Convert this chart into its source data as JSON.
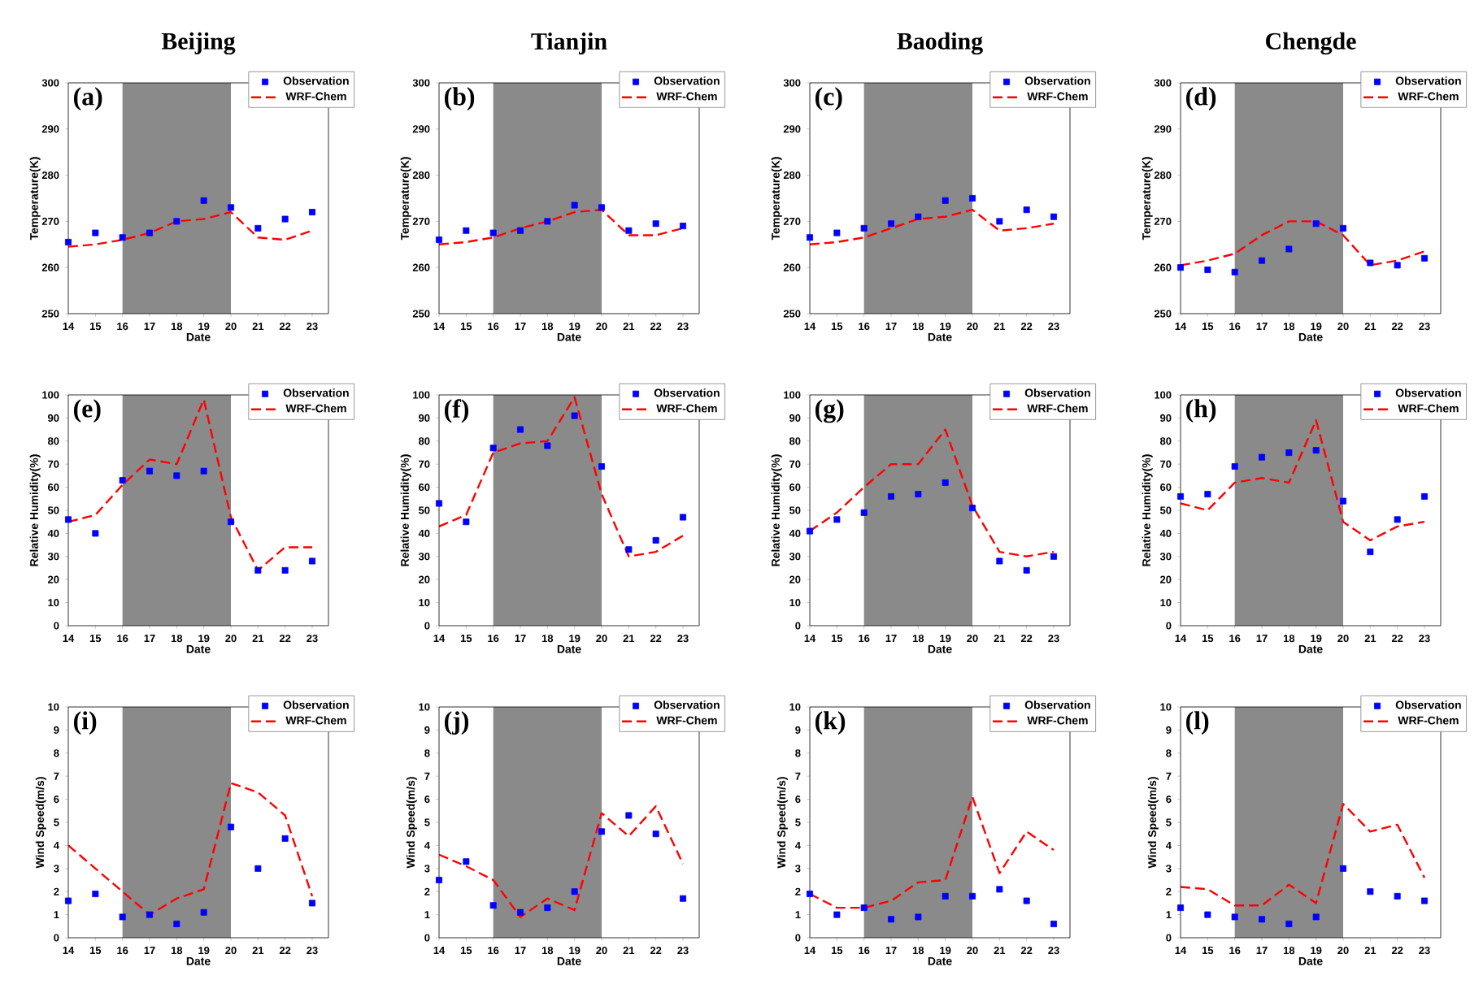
{
  "chart_data": [
    {
      "type": "line",
      "title": "Beijing",
      "annotations": [
        "(a)"
      ],
      "xlabel": "Date",
      "ylabel": "Temperature(K)",
      "x": [
        14,
        15,
        16,
        17,
        18,
        19,
        20,
        21,
        22,
        23
      ],
      "xlim": [
        14,
        23.6
      ],
      "xticks": [
        14,
        15,
        16,
        17,
        18,
        19,
        20,
        21,
        22,
        23
      ],
      "ylim": [
        250,
        300
      ],
      "yticks": [
        250,
        260,
        270,
        280,
        290,
        300
      ],
      "legend": "top right",
      "bands": [
        {
          "axis": "x",
          "from": 16,
          "to": 20,
          "color": "#8a8a8a"
        }
      ],
      "series": [
        {
          "name": "Observation",
          "type": "scatter",
          "color": "#0000ff",
          "marker": "square",
          "values": [
            265.5,
            267.5,
            266.5,
            267.5,
            270,
            274.5,
            273,
            268.5,
            270.5,
            272
          ]
        },
        {
          "name": "WRF-Chem",
          "type": "line",
          "color": "#ff0000",
          "marker": "none",
          "line_style": "dashed",
          "values": [
            264.5,
            265,
            266,
            267.5,
            270,
            270.5,
            272,
            266.5,
            266,
            268
          ]
        }
      ]
    },
    {
      "type": "line",
      "title": "Tianjin",
      "annotations": [
        "(b)"
      ],
      "xlabel": "Date",
      "ylabel": "Temperature(K)",
      "x": [
        14,
        15,
        16,
        17,
        18,
        19,
        20,
        21,
        22,
        23
      ],
      "xlim": [
        14,
        23.6
      ],
      "xticks": [
        14,
        15,
        16,
        17,
        18,
        19,
        20,
        21,
        22,
        23
      ],
      "ylim": [
        250,
        300
      ],
      "yticks": [
        250,
        260,
        270,
        280,
        290,
        300
      ],
      "legend": "top right",
      "bands": [
        {
          "axis": "x",
          "from": 16,
          "to": 20,
          "color": "#8a8a8a"
        }
      ],
      "series": [
        {
          "name": "Observation",
          "type": "scatter",
          "color": "#0000ff",
          "marker": "square",
          "values": [
            266,
            268,
            267.5,
            268,
            270,
            273.5,
            273,
            268,
            269.5,
            269
          ]
        },
        {
          "name": "WRF-Chem",
          "type": "line",
          "color": "#ff0000",
          "marker": "none",
          "line_style": "dashed",
          "values": [
            265,
            265.5,
            266.5,
            268.5,
            270,
            272,
            272.5,
            267,
            267,
            268.5
          ]
        }
      ]
    },
    {
      "type": "line",
      "title": "Baoding",
      "annotations": [
        "(c)"
      ],
      "xlabel": "Date",
      "ylabel": "Temperature(K)",
      "x": [
        14,
        15,
        16,
        17,
        18,
        19,
        20,
        21,
        22,
        23
      ],
      "xlim": [
        14,
        23.6
      ],
      "xticks": [
        14,
        15,
        16,
        17,
        18,
        19,
        20,
        21,
        22,
        23
      ],
      "ylim": [
        250,
        300
      ],
      "yticks": [
        250,
        260,
        270,
        280,
        290,
        300
      ],
      "legend": "top right",
      "bands": [
        {
          "axis": "x",
          "from": 16,
          "to": 20,
          "color": "#8a8a8a"
        }
      ],
      "series": [
        {
          "name": "Observation",
          "type": "scatter",
          "color": "#0000ff",
          "marker": "square",
          "values": [
            266.5,
            267.5,
            268.5,
            269.5,
            271,
            274.5,
            275,
            270,
            272.5,
            271
          ]
        },
        {
          "name": "WRF-Chem",
          "type": "line",
          "color": "#ff0000",
          "marker": "none",
          "line_style": "dashed",
          "values": [
            265,
            265.5,
            266.5,
            268.5,
            270.5,
            271,
            272.5,
            268,
            268.5,
            269.5
          ]
        }
      ]
    },
    {
      "type": "line",
      "title": "Chengde",
      "annotations": [
        "(d)"
      ],
      "xlabel": "Date",
      "ylabel": "Temperature(K)",
      "x": [
        14,
        15,
        16,
        17,
        18,
        19,
        20,
        21,
        22,
        23
      ],
      "xlim": [
        14,
        23.6
      ],
      "xticks": [
        14,
        15,
        16,
        17,
        18,
        19,
        20,
        21,
        22,
        23
      ],
      "ylim": [
        250,
        300
      ],
      "yticks": [
        250,
        260,
        270,
        280,
        290,
        300
      ],
      "legend": "top right",
      "bands": [
        {
          "axis": "x",
          "from": 16,
          "to": 20,
          "color": "#8a8a8a"
        }
      ],
      "series": [
        {
          "name": "Observation",
          "type": "scatter",
          "color": "#0000ff",
          "marker": "square",
          "values": [
            260,
            259.5,
            259,
            261.5,
            264,
            269.5,
            268.5,
            261,
            260.5,
            262
          ]
        },
        {
          "name": "WRF-Chem",
          "type": "line",
          "color": "#ff0000",
          "marker": "none",
          "line_style": "dashed",
          "values": [
            260.5,
            261.5,
            263,
            267,
            270,
            270,
            267,
            260.5,
            261.5,
            263.5
          ]
        }
      ]
    },
    {
      "type": "line",
      "annotations": [
        "(e)"
      ],
      "xlabel": "Date",
      "ylabel": "Relative Humidity(%)",
      "x": [
        14,
        15,
        16,
        17,
        18,
        19,
        20,
        21,
        22,
        23
      ],
      "xlim": [
        14,
        23.6
      ],
      "xticks": [
        14,
        15,
        16,
        17,
        18,
        19,
        20,
        21,
        22,
        23
      ],
      "ylim": [
        0,
        100
      ],
      "yticks": [
        0,
        10,
        20,
        30,
        40,
        50,
        60,
        70,
        80,
        90,
        100
      ],
      "legend": "top right",
      "bands": [
        {
          "axis": "x",
          "from": 16,
          "to": 20,
          "color": "#8a8a8a"
        }
      ],
      "series": [
        {
          "name": "Observation",
          "type": "scatter",
          "color": "#0000ff",
          "marker": "square",
          "values": [
            46,
            40,
            63,
            67,
            65,
            67,
            45,
            24,
            24,
            28
          ]
        },
        {
          "name": "WRF-Chem",
          "type": "line",
          "color": "#ff0000",
          "marker": "none",
          "line_style": "dashed",
          "values": [
            45,
            48,
            61,
            72,
            70,
            98,
            47,
            24,
            34,
            34
          ]
        }
      ]
    },
    {
      "type": "line",
      "annotations": [
        "(f)"
      ],
      "xlabel": "Date",
      "ylabel": "Relative Humidity(%)",
      "x": [
        14,
        15,
        16,
        17,
        18,
        19,
        20,
        21,
        22,
        23
      ],
      "xlim": [
        14,
        23.6
      ],
      "xticks": [
        14,
        15,
        16,
        17,
        18,
        19,
        20,
        21,
        22,
        23
      ],
      "ylim": [
        0,
        100
      ],
      "yticks": [
        0,
        10,
        20,
        30,
        40,
        50,
        60,
        70,
        80,
        90,
        100
      ],
      "legend": "top right",
      "bands": [
        {
          "axis": "x",
          "from": 16,
          "to": 20,
          "color": "#8a8a8a"
        }
      ],
      "series": [
        {
          "name": "Observation",
          "type": "scatter",
          "color": "#0000ff",
          "marker": "square",
          "values": [
            53,
            45,
            77,
            85,
            78,
            91,
            69,
            33,
            37,
            47
          ]
        },
        {
          "name": "WRF-Chem",
          "type": "line",
          "color": "#ff0000",
          "marker": "none",
          "line_style": "dashed",
          "values": [
            43,
            48,
            75,
            79,
            80,
            99,
            57,
            30,
            32,
            39
          ]
        }
      ]
    },
    {
      "type": "line",
      "annotations": [
        "(g)"
      ],
      "xlabel": "Date",
      "ylabel": "Relative Humidity(%)",
      "x": [
        14,
        15,
        16,
        17,
        18,
        19,
        20,
        21,
        22,
        23
      ],
      "xlim": [
        14,
        23.6
      ],
      "xticks": [
        14,
        15,
        16,
        17,
        18,
        19,
        20,
        21,
        22,
        23
      ],
      "ylim": [
        0,
        100
      ],
      "yticks": [
        0,
        10,
        20,
        30,
        40,
        50,
        60,
        70,
        80,
        90,
        100
      ],
      "legend": "top right",
      "bands": [
        {
          "axis": "x",
          "from": 16,
          "to": 20,
          "color": "#8a8a8a"
        }
      ],
      "series": [
        {
          "name": "Observation",
          "type": "scatter",
          "color": "#0000ff",
          "marker": "square",
          "values": [
            41,
            46,
            49,
            56,
            57,
            62,
            51,
            28,
            24,
            30
          ]
        },
        {
          "name": "WRF-Chem",
          "type": "line",
          "color": "#ff0000",
          "marker": "none",
          "line_style": "dashed",
          "values": [
            41,
            49,
            60,
            70,
            70,
            85,
            52,
            32,
            30,
            32
          ]
        }
      ]
    },
    {
      "type": "line",
      "annotations": [
        "(h)"
      ],
      "xlabel": "Date",
      "ylabel": "Relative Humidity(%)",
      "x": [
        14,
        15,
        16,
        17,
        18,
        19,
        20,
        21,
        22,
        23
      ],
      "xlim": [
        14,
        23.6
      ],
      "xticks": [
        14,
        15,
        16,
        17,
        18,
        19,
        20,
        21,
        22,
        23
      ],
      "ylim": [
        0,
        100
      ],
      "yticks": [
        0,
        10,
        20,
        30,
        40,
        50,
        60,
        70,
        80,
        90,
        100
      ],
      "legend": "top right",
      "bands": [
        {
          "axis": "x",
          "from": 16,
          "to": 20,
          "color": "#8a8a8a"
        }
      ],
      "series": [
        {
          "name": "Observation",
          "type": "scatter",
          "color": "#0000ff",
          "marker": "square",
          "values": [
            56,
            57,
            69,
            73,
            75,
            76,
            54,
            32,
            46,
            56
          ]
        },
        {
          "name": "WRF-Chem",
          "type": "line",
          "color": "#ff0000",
          "marker": "none",
          "line_style": "dashed",
          "values": [
            53,
            50,
            62,
            64,
            62,
            89,
            45,
            37,
            43,
            45
          ]
        }
      ]
    },
    {
      "type": "line",
      "annotations": [
        "(i)"
      ],
      "xlabel": "Date",
      "ylabel": "Wind Speed(m/s)",
      "x": [
        14,
        15,
        16,
        17,
        18,
        19,
        20,
        21,
        22,
        23
      ],
      "xlim": [
        14,
        23.6
      ],
      "xticks": [
        14,
        15,
        16,
        17,
        18,
        19,
        20,
        21,
        22,
        23
      ],
      "ylim": [
        0,
        10
      ],
      "yticks": [
        0,
        1,
        2,
        3,
        4,
        5,
        6,
        7,
        8,
        9,
        10
      ],
      "legend": "top right",
      "bands": [
        {
          "axis": "x",
          "from": 16,
          "to": 20,
          "color": "#8a8a8a"
        }
      ],
      "series": [
        {
          "name": "Observation",
          "type": "scatter",
          "color": "#0000ff",
          "marker": "square",
          "values": [
            1.6,
            1.9,
            0.9,
            1.0,
            0.6,
            1.1,
            4.8,
            3.0,
            4.3,
            1.5
          ]
        },
        {
          "name": "WRF-Chem",
          "type": "line",
          "color": "#ff0000",
          "marker": "none",
          "line_style": "dashed",
          "values": [
            4.0,
            3.0,
            2.0,
            1.0,
            1.7,
            2.1,
            6.7,
            6.3,
            5.3,
            1.8
          ]
        }
      ]
    },
    {
      "type": "line",
      "annotations": [
        "(j)"
      ],
      "xlabel": "Date",
      "ylabel": "Wind Speed(m/s)",
      "x": [
        14,
        15,
        16,
        17,
        18,
        19,
        20,
        21,
        22,
        23
      ],
      "xlim": [
        14,
        23.6
      ],
      "xticks": [
        14,
        15,
        16,
        17,
        18,
        19,
        20,
        21,
        22,
        23
      ],
      "ylim": [
        0,
        10
      ],
      "yticks": [
        0,
        1,
        2,
        3,
        4,
        5,
        6,
        7,
        8,
        9,
        10
      ],
      "legend": "top right",
      "bands": [
        {
          "axis": "x",
          "from": 16,
          "to": 20,
          "color": "#8a8a8a"
        }
      ],
      "series": [
        {
          "name": "Observation",
          "type": "scatter",
          "color": "#0000ff",
          "marker": "square",
          "values": [
            2.5,
            3.3,
            1.4,
            1.1,
            1.3,
            2.0,
            4.6,
            5.3,
            4.5,
            1.7
          ]
        },
        {
          "name": "WRF-Chem",
          "type": "line",
          "color": "#ff0000",
          "marker": "none",
          "line_style": "dashed",
          "values": [
            3.6,
            3.1,
            2.5,
            0.9,
            1.7,
            1.2,
            5.4,
            4.4,
            5.7,
            3.2
          ]
        }
      ]
    },
    {
      "type": "line",
      "annotations": [
        "(k)"
      ],
      "xlabel": "Date",
      "ylabel": "Wind Speed(m/s)",
      "x": [
        14,
        15,
        16,
        17,
        18,
        19,
        20,
        21,
        22,
        23
      ],
      "xlim": [
        14,
        23.6
      ],
      "xticks": [
        14,
        15,
        16,
        17,
        18,
        19,
        20,
        21,
        22,
        23
      ],
      "ylim": [
        0,
        10
      ],
      "yticks": [
        0,
        1,
        2,
        3,
        4,
        5,
        6,
        7,
        8,
        9,
        10
      ],
      "legend": "top right",
      "bands": [
        {
          "axis": "x",
          "from": 16,
          "to": 20,
          "color": "#8a8a8a"
        }
      ],
      "series": [
        {
          "name": "Observation",
          "type": "scatter",
          "color": "#0000ff",
          "marker": "square",
          "values": [
            1.9,
            1.0,
            1.3,
            0.8,
            0.9,
            1.8,
            1.8,
            2.1,
            1.6,
            0.6
          ]
        },
        {
          "name": "WRF-Chem",
          "type": "line",
          "color": "#ff0000",
          "marker": "none",
          "line_style": "dashed",
          "values": [
            1.9,
            1.3,
            1.3,
            1.6,
            2.4,
            2.5,
            6.1,
            2.8,
            4.6,
            3.8
          ]
        }
      ]
    },
    {
      "type": "line",
      "annotations": [
        "(l)"
      ],
      "xlabel": "Date",
      "ylabel": "Wind Speed(m/s)",
      "x": [
        14,
        15,
        16,
        17,
        18,
        19,
        20,
        21,
        22,
        23
      ],
      "xlim": [
        14,
        23.6
      ],
      "xticks": [
        14,
        15,
        16,
        17,
        18,
        19,
        20,
        21,
        22,
        23
      ],
      "ylim": [
        0,
        10
      ],
      "yticks": [
        0,
        1,
        2,
        3,
        4,
        5,
        6,
        7,
        8,
        9,
        10
      ],
      "legend": "top right",
      "bands": [
        {
          "axis": "x",
          "from": 16,
          "to": 20,
          "color": "#8a8a8a"
        }
      ],
      "series": [
        {
          "name": "Observation",
          "type": "scatter",
          "color": "#0000ff",
          "marker": "square",
          "values": [
            1.3,
            1.0,
            0.9,
            0.8,
            0.6,
            0.9,
            3.0,
            2.0,
            1.8,
            1.6
          ]
        },
        {
          "name": "WRF-Chem",
          "type": "line",
          "color": "#ff0000",
          "marker": "none",
          "line_style": "dashed",
          "values": [
            2.2,
            2.1,
            1.4,
            1.4,
            2.3,
            1.5,
            5.8,
            4.6,
            4.9,
            2.6
          ]
        }
      ]
    }
  ]
}
